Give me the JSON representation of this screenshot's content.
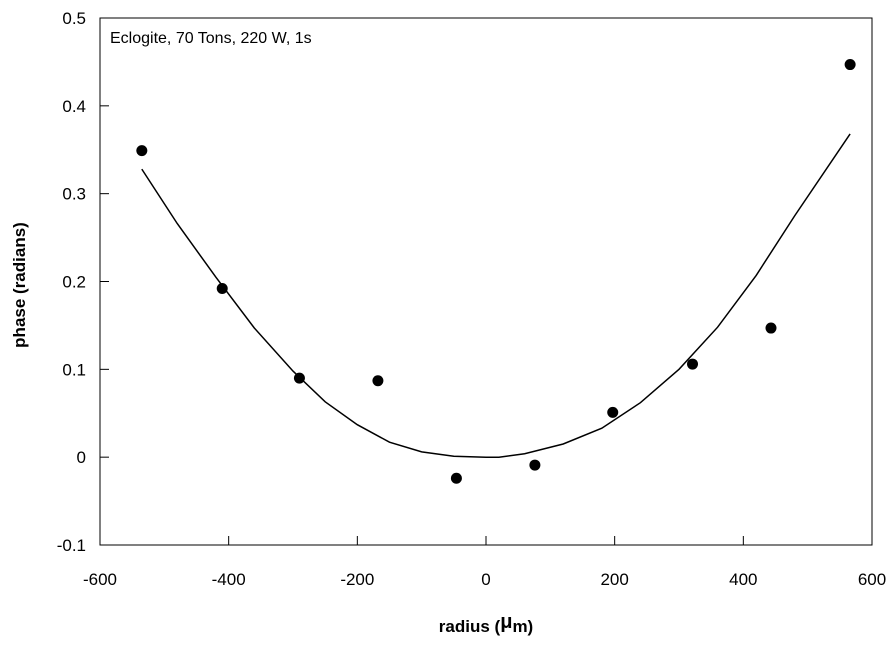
{
  "chart_data": {
    "type": "scatter",
    "annotation": "Eclogite, 70 Tons, 220 W, 1s",
    "xlabel_prefix": "radius (",
    "xlabel_mu": "μ",
    "xlabel_suffix": "m)",
    "ylabel": "phase (radians)",
    "xlim": [
      -600,
      600
    ],
    "ylim": [
      -0.1,
      0.5
    ],
    "xticks": [
      -600,
      -400,
      -200,
      0,
      200,
      400,
      600
    ],
    "yticks": [
      -0.1,
      0,
      0.1,
      0.2,
      0.3,
      0.4,
      0.5
    ],
    "xtick_labels": [
      "-600",
      "-400",
      "-200",
      "0",
      "200",
      "400",
      "600"
    ],
    "ytick_labels": [
      "-0.1",
      "0",
      "0.1",
      "0.2",
      "0.3",
      "0.4",
      "0.5"
    ],
    "grid": false,
    "points": {
      "x": [
        -535,
        -410,
        -290,
        -168,
        -46,
        76,
        197,
        321,
        443,
        566
      ],
      "y": [
        0.349,
        0.192,
        0.09,
        0.087,
        -0.024,
        -0.009,
        0.051,
        0.106,
        0.147,
        0.447
      ]
    },
    "fit": {
      "x": [
        -535,
        -480,
        -420,
        -360,
        -300,
        -250,
        -200,
        -150,
        -100,
        -50,
        0,
        20,
        60,
        120,
        180,
        240,
        300,
        360,
        420,
        480,
        566
      ],
      "y": [
        0.328,
        0.266,
        0.205,
        0.147,
        0.098,
        0.063,
        0.037,
        0.017,
        0.006,
        0.001,
        0.0,
        0.0,
        0.004,
        0.015,
        0.033,
        0.062,
        0.1,
        0.148,
        0.207,
        0.275,
        0.368
      ]
    },
    "colors": {
      "marker": "#000000",
      "line": "#000000",
      "axis": "#000000"
    }
  }
}
